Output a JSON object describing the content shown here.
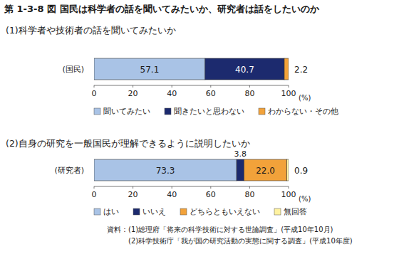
{
  "title": "第 1-3-8 図 国民は科学者の話を聞いてみたいか、研究者は話をしたいのか",
  "source": [
    "資料：(1)総理府「将来の科学技術に対する世論調査」(平成10年10月)",
    "(2)科学技術庁「我が国の研究活動の実態に関する調査」(平成10年度)"
  ],
  "chart_data": [
    {
      "type": "bar",
      "orientation": "horizontal",
      "stacked": true,
      "data_labels": true,
      "title": "(1)科学者や技術者の話を聞いてみたいか",
      "categories": [
        "(国民)"
      ],
      "series": [
        {
          "name": "聞いてみたい",
          "color": "#a9c3e6",
          "values": [
            57.1
          ]
        },
        {
          "name": "聞きたいと思わない",
          "color": "#1c2a6e",
          "values": [
            40.7
          ]
        },
        {
          "name": "わからない・その他",
          "color": "#f2a23a",
          "values": [
            2.2
          ]
        }
      ],
      "xlim": [
        0,
        100
      ],
      "xticks": [
        0,
        20,
        40,
        60,
        80,
        100
      ],
      "x_label": "(%)"
    },
    {
      "type": "bar",
      "orientation": "horizontal",
      "stacked": true,
      "data_labels": true,
      "title": "(2)自身の研究を一般国民が理解できるように説明したいか",
      "categories": [
        "(研究者)"
      ],
      "series": [
        {
          "name": "はい",
          "color": "#a9c3e6",
          "values": [
            73.3
          ]
        },
        {
          "name": "いいえ",
          "color": "#1c2a6e",
          "values": [
            3.8
          ]
        },
        {
          "name": "どちらともいえない",
          "color": "#f2a23a",
          "values": [
            22.0
          ],
          "value_labels": [
            "22.0"
          ]
        },
        {
          "name": "無回答",
          "color": "#fff2a0",
          "values": [
            0.9
          ]
        }
      ],
      "xlim": [
        0,
        100
      ],
      "xticks": [
        0,
        20,
        40,
        60,
        80,
        100
      ],
      "x_label": "(%)"
    }
  ]
}
